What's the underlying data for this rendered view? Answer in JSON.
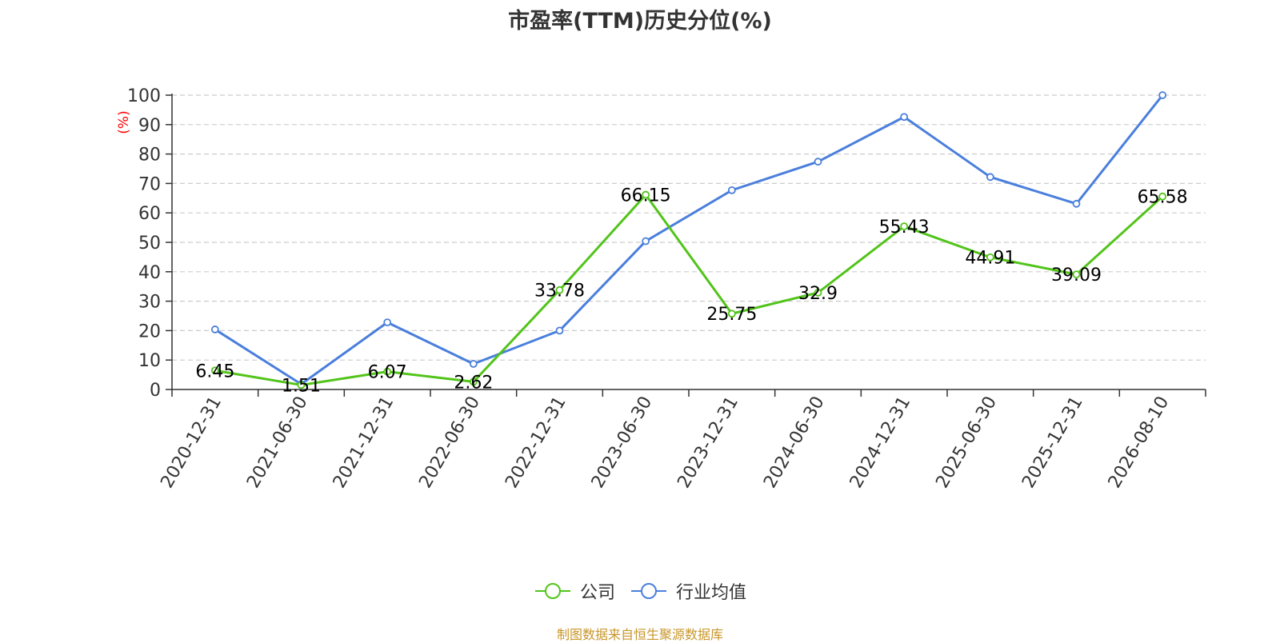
{
  "chart_data": {
    "type": "line",
    "title": "市盈率(TTM)历史分位(%)",
    "ylabel": "(%)",
    "xlabel": "",
    "ylim": [
      0,
      100
    ],
    "yticks": [
      0,
      10,
      20,
      30,
      40,
      50,
      60,
      70,
      80,
      90,
      100
    ],
    "grid": true,
    "legend_position": "bottom",
    "categories": [
      "2020-12-31",
      "2021-06-30",
      "2021-12-31",
      "2022-06-30",
      "2022-12-31",
      "2023-06-30",
      "2023-12-31",
      "2024-06-30",
      "2024-12-31",
      "2025-06-30",
      "2025-12-31",
      "2026-08-10"
    ],
    "series": [
      {
        "name": "公司",
        "color": "#52c41a",
        "values": [
          6.45,
          1.51,
          6.07,
          2.62,
          33.78,
          66.15,
          25.75,
          32.9,
          55.43,
          44.91,
          39.09,
          65.58
        ],
        "data_labels": [
          "6.45",
          "1.51",
          "6.07",
          "2.62",
          "33.78",
          "66.15",
          "25.75",
          "32.9",
          "55.43",
          "44.91",
          "39.09",
          "65.58"
        ]
      },
      {
        "name": "行业均值",
        "color": "#4a7fdc",
        "values": [
          20.4,
          1.8,
          22.8,
          8.7,
          20.0,
          50.4,
          67.7,
          77.4,
          92.6,
          72.2,
          63.1,
          100
        ]
      }
    ]
  },
  "source": {
    "text": "制图数据来自恒生聚源数据库",
    "color": "#c8962a"
  },
  "colors": {
    "axis": "#333333",
    "grid": "#cccccc",
    "ylabel": "#ff0000"
  }
}
